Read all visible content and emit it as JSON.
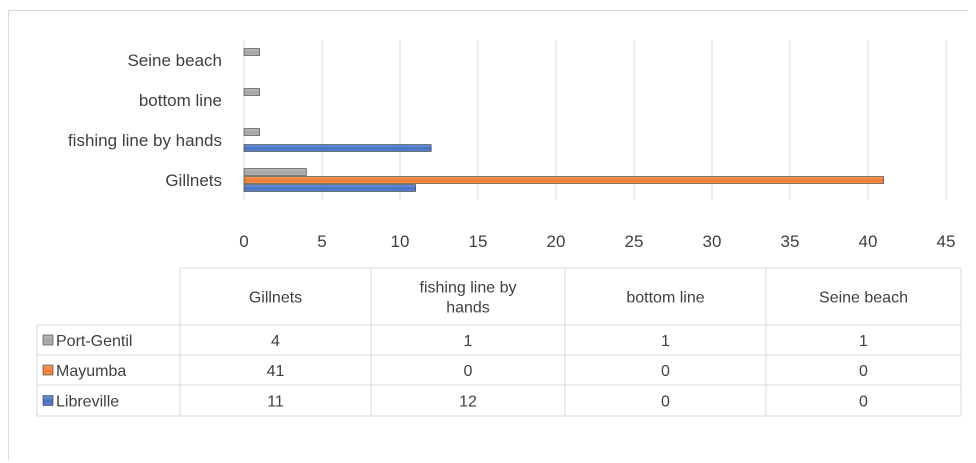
{
  "chart_data": {
    "type": "bar",
    "orientation": "horizontal",
    "categories": [
      "Gillnets",
      "fishing line by hands",
      "bottom line",
      "Seine beach"
    ],
    "header_labels": [
      [
        "Gillnets"
      ],
      [
        "fishing line by",
        "hands"
      ],
      [
        "bottom line"
      ],
      [
        "Seine beach"
      ]
    ],
    "series": [
      {
        "name": "Libreville",
        "values": [
          11,
          12,
          0,
          0
        ],
        "color": "#4472c4"
      },
      {
        "name": "Mayumba",
        "values": [
          41,
          0,
          0,
          0
        ],
        "color": "#ed7d31"
      },
      {
        "name": "Port-Gentil",
        "values": [
          4,
          1,
          1,
          1
        ],
        "color": "#a5a5a5"
      }
    ],
    "xlim": [
      0,
      45
    ],
    "xticks": [
      0,
      5,
      10,
      15,
      20,
      25,
      30,
      35,
      40,
      45
    ],
    "xtick_labels": [
      "0",
      "5",
      "10",
      "15",
      "20",
      "25",
      "30",
      "35",
      "40",
      "45"
    ],
    "grid": true,
    "legend": "data-table-below"
  }
}
